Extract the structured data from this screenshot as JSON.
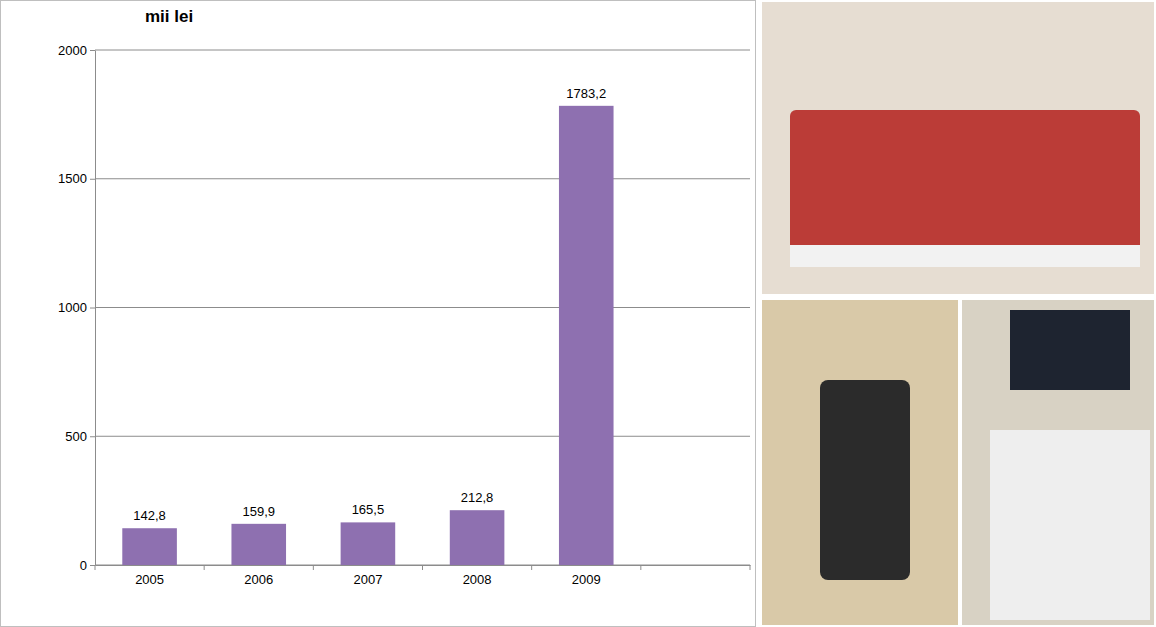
{
  "chart_data": {
    "type": "bar",
    "title": "mii lei",
    "categories": [
      "2005",
      "2006",
      "2007",
      "2008",
      "2009",
      null
    ],
    "values": [
      142.8,
      159.9,
      165.5,
      212.8,
      1783.2,
      null
    ],
    "value_labels": [
      "142,8",
      "159,9",
      "165,5",
      "212,8",
      "1783,2",
      null
    ],
    "color": "#8e70b0",
    "ylim": [
      0,
      2000
    ],
    "yticks": [
      0,
      500,
      1000,
      1500,
      2000
    ],
    "grid": true,
    "data_labels": true
  }
}
